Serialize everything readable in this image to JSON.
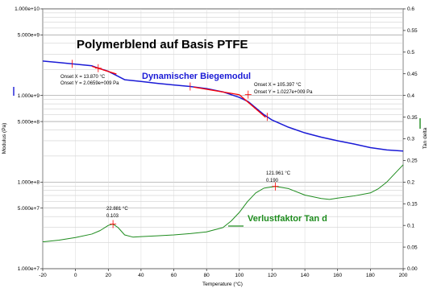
{
  "chart_data": {
    "type": "line",
    "title": "Polymerblend auf Basis PTFE",
    "xlabel": "Temperature (°C)",
    "ylabel_left": "Modulus (Pa)",
    "ylabel_right": "Tan delta",
    "xlim": [
      -20,
      200
    ],
    "ylim_left": [
      10000000,
      10000000000
    ],
    "ylim_left_scale": "log",
    "ylim_right": [
      0,
      0.6
    ],
    "grid": true,
    "x_ticks": [
      "-20",
      "0",
      "20",
      "40",
      "60",
      "80",
      "100",
      "120",
      "140",
      "160",
      "180",
      "200"
    ],
    "y_left_ticks": [
      {
        "value": 10000000000,
        "label": "1.000e+10"
      },
      {
        "value": 5000000000,
        "label": "5.000e+9"
      },
      {
        "value": 1000000000,
        "label": "1.000e+9"
      },
      {
        "value": 500000000,
        "label": "5.000e+8"
      },
      {
        "value": 100000000,
        "label": "1.000e+8"
      },
      {
        "value": 50000000,
        "label": "5.000e+7"
      },
      {
        "value": 10000000,
        "label": "1.000e+7"
      }
    ],
    "y_right_ticks": [
      "0.6",
      "0.55",
      "0.5",
      "0.45",
      "0.4",
      "0.35",
      "0.3",
      "0.25",
      "0.2",
      "0.15",
      "0.1",
      "0.05",
      "0.00"
    ],
    "series": [
      {
        "name": "Dynamischer Biegemodul",
        "axis": "left",
        "color": "#1a1ad6",
        "points": [
          [
            -20,
            2500000000
          ],
          [
            -10,
            2400000000
          ],
          [
            0,
            2300000000
          ],
          [
            10,
            2200000000
          ],
          [
            13.9,
            2070000000
          ],
          [
            20,
            1900000000
          ],
          [
            25,
            1700000000
          ],
          [
            30,
            1520000000
          ],
          [
            40,
            1450000000
          ],
          [
            50,
            1380000000
          ],
          [
            60,
            1320000000
          ],
          [
            70,
            1270000000
          ],
          [
            80,
            1200000000
          ],
          [
            90,
            1100000000
          ],
          [
            100,
            950000000
          ],
          [
            105.4,
            850000000
          ],
          [
            110,
            720000000
          ],
          [
            115,
            600000000
          ],
          [
            120,
            520000000
          ],
          [
            130,
            430000000
          ],
          [
            140,
            370000000
          ],
          [
            150,
            330000000
          ],
          [
            160,
            300000000
          ],
          [
            170,
            275000000
          ],
          [
            180,
            250000000
          ],
          [
            190,
            235000000
          ],
          [
            200,
            228000000
          ]
        ]
      },
      {
        "name": "Verlustfaktor Tan d",
        "axis": "right",
        "color": "#1e8c1e",
        "points": [
          [
            -20,
            0.062
          ],
          [
            -10,
            0.066
          ],
          [
            0,
            0.072
          ],
          [
            10,
            0.08
          ],
          [
            15,
            0.088
          ],
          [
            20,
            0.1
          ],
          [
            22.9,
            0.103
          ],
          [
            26,
            0.095
          ],
          [
            30,
            0.078
          ],
          [
            35,
            0.073
          ],
          [
            40,
            0.074
          ],
          [
            50,
            0.076
          ],
          [
            60,
            0.078
          ],
          [
            70,
            0.081
          ],
          [
            80,
            0.085
          ],
          [
            90,
            0.095
          ],
          [
            95,
            0.11
          ],
          [
            100,
            0.13
          ],
          [
            105,
            0.155
          ],
          [
            110,
            0.175
          ],
          [
            115,
            0.186
          ],
          [
            122,
            0.19
          ],
          [
            130,
            0.185
          ],
          [
            140,
            0.17
          ],
          [
            150,
            0.162
          ],
          [
            155,
            0.16
          ],
          [
            160,
            0.163
          ],
          [
            170,
            0.168
          ],
          [
            180,
            0.175
          ],
          [
            185,
            0.185
          ],
          [
            190,
            0.2
          ],
          [
            195,
            0.22
          ],
          [
            200,
            0.24
          ]
        ]
      }
    ],
    "tangent_lines": {
      "color": "#ff0000",
      "segments": [
        {
          "axis": "left",
          "from": [
            10,
            2170000000
          ],
          "to": [
            25,
            1770000000
          ]
        },
        {
          "axis": "left",
          "from": [
            72,
            1250000000
          ],
          "to": [
            100,
            1020000000
          ]
        },
        {
          "axis": "left",
          "from": [
            100,
            1020000000
          ],
          "to": [
            116,
            560000000
          ]
        }
      ]
    },
    "annotations": [
      {
        "id": "onset1_x",
        "text": "Onset X = 13.870 °C",
        "x": 13.87,
        "y": 2065900000,
        "axis": "left"
      },
      {
        "id": "onset1_y",
        "text": "Onset Y = 2.0659e+009 Pa"
      },
      {
        "id": "onset2_x",
        "text": "Onset X = 105.397 °C",
        "x": 105.397,
        "y": 1022700000,
        "axis": "left"
      },
      {
        "id": "onset2_y",
        "text": "Onset Y = 1.0227e+009 Pa"
      },
      {
        "id": "peak1_x",
        "text": "22.881 °C",
        "x": 22.881,
        "y": 0.103,
        "axis": "right"
      },
      {
        "id": "peak1_y",
        "text": "0.103"
      },
      {
        "id": "peak2_x",
        "text": "121.961 °C",
        "x": 121.961,
        "y": 0.19,
        "axis": "right"
      },
      {
        "id": "peak2_y",
        "text": "0.190"
      }
    ]
  }
}
